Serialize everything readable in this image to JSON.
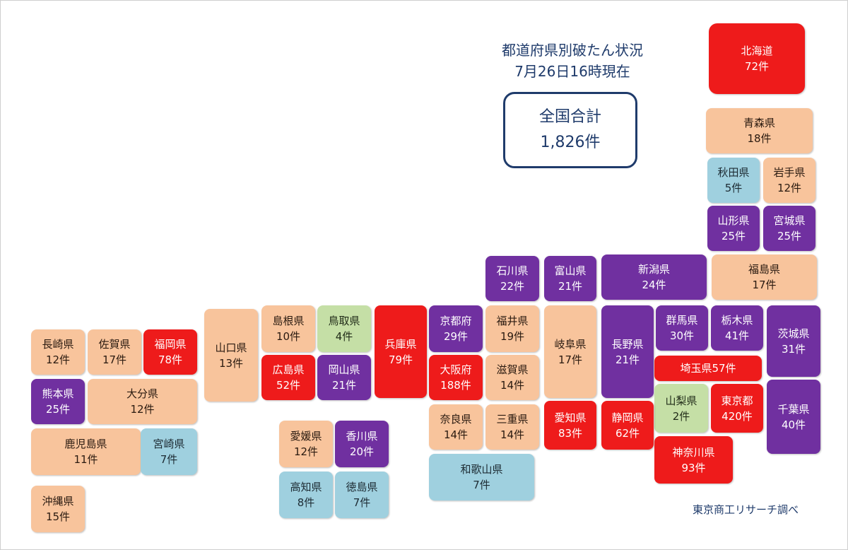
{
  "title": {
    "line1": "都道府県別破たん状況",
    "line2": "7月26日16時現在"
  },
  "total": {
    "label": "全国合計",
    "value": "1,826件"
  },
  "credit": "東京商工リサーチ調べ",
  "colors": {
    "red": "#ee1b1b",
    "purple": "#7030a0",
    "orange": "#f8c49c",
    "blue": "#9fd0df",
    "green": "#c5dfa6"
  },
  "prefectures": [
    {
      "id": "hokkaido",
      "name": "北海道",
      "count": "72件",
      "color": "red"
    },
    {
      "id": "aomori",
      "name": "青森県",
      "count": "18件",
      "color": "orange"
    },
    {
      "id": "akita",
      "name": "秋田県",
      "count": "5件",
      "color": "blue"
    },
    {
      "id": "iwate",
      "name": "岩手県",
      "count": "12件",
      "color": "orange"
    },
    {
      "id": "yamagata",
      "name": "山形県",
      "count": "25件",
      "color": "purple"
    },
    {
      "id": "miyagi",
      "name": "宮城県",
      "count": "25件",
      "color": "purple"
    },
    {
      "id": "ishikawa",
      "name": "石川県",
      "count": "22件",
      "color": "purple"
    },
    {
      "id": "toyama",
      "name": "富山県",
      "count": "21件",
      "color": "purple"
    },
    {
      "id": "niigata",
      "name": "新潟県",
      "count": "24件",
      "color": "purple"
    },
    {
      "id": "fukushima",
      "name": "福島県",
      "count": "17件",
      "color": "orange"
    },
    {
      "id": "nagasaki",
      "name": "長崎県",
      "count": "12件",
      "color": "orange"
    },
    {
      "id": "saga",
      "name": "佐賀県",
      "count": "17件",
      "color": "orange"
    },
    {
      "id": "fukuoka",
      "name": "福岡県",
      "count": "78件",
      "color": "red"
    },
    {
      "id": "yamaguchi",
      "name": "山口県",
      "count": "13件",
      "color": "orange"
    },
    {
      "id": "shimane",
      "name": "島根県",
      "count": "10件",
      "color": "orange"
    },
    {
      "id": "tottori",
      "name": "鳥取県",
      "count": "4件",
      "color": "green"
    },
    {
      "id": "hyogo",
      "name": "兵庫県",
      "count": "79件",
      "color": "red"
    },
    {
      "id": "kyoto",
      "name": "京都府",
      "count": "29件",
      "color": "purple"
    },
    {
      "id": "fukui",
      "name": "福井県",
      "count": "19件",
      "color": "orange"
    },
    {
      "id": "gifu",
      "name": "岐阜県",
      "count": "17件",
      "color": "orange"
    },
    {
      "id": "nagano",
      "name": "長野県",
      "count": "21件",
      "color": "purple"
    },
    {
      "id": "gunma",
      "name": "群馬県",
      "count": "30件",
      "color": "purple"
    },
    {
      "id": "tochigi",
      "name": "栃木県",
      "count": "41件",
      "color": "purple"
    },
    {
      "id": "ibaraki",
      "name": "茨城県",
      "count": "31件",
      "color": "purple"
    },
    {
      "id": "kumamoto",
      "name": "熊本県",
      "count": "25件",
      "color": "purple"
    },
    {
      "id": "oita",
      "name": "大分県",
      "count": "12件",
      "color": "orange"
    },
    {
      "id": "hiroshima",
      "name": "広島県",
      "count": "52件",
      "color": "red"
    },
    {
      "id": "okayama",
      "name": "岡山県",
      "count": "21件",
      "color": "purple"
    },
    {
      "id": "osaka",
      "name": "大阪府",
      "count": "188件",
      "color": "red"
    },
    {
      "id": "shiga",
      "name": "滋賀県",
      "count": "14件",
      "color": "orange"
    },
    {
      "id": "saitama",
      "name": "埼玉県",
      "count": "57件",
      "color": "red"
    },
    {
      "id": "yamanashi",
      "name": "山梨県",
      "count": "2件",
      "color": "green"
    },
    {
      "id": "tokyo",
      "name": "東京都",
      "count": "420件",
      "color": "red"
    },
    {
      "id": "chiba",
      "name": "千葉県",
      "count": "40件",
      "color": "purple"
    },
    {
      "id": "kagoshima",
      "name": "鹿児島県",
      "count": "11件",
      "color": "orange"
    },
    {
      "id": "miyazaki",
      "name": "宮崎県",
      "count": "7件",
      "color": "blue"
    },
    {
      "id": "ehime",
      "name": "愛媛県",
      "count": "12件",
      "color": "orange"
    },
    {
      "id": "kagawa",
      "name": "香川県",
      "count": "20件",
      "color": "purple"
    },
    {
      "id": "nara",
      "name": "奈良県",
      "count": "14件",
      "color": "orange"
    },
    {
      "id": "mie",
      "name": "三重県",
      "count": "14件",
      "color": "orange"
    },
    {
      "id": "aichi",
      "name": "愛知県",
      "count": "83件",
      "color": "red"
    },
    {
      "id": "shizuoka",
      "name": "静岡県",
      "count": "62件",
      "color": "red"
    },
    {
      "id": "kanagawa",
      "name": "神奈川県",
      "count": "93件",
      "color": "red"
    },
    {
      "id": "kochi",
      "name": "高知県",
      "count": "8件",
      "color": "blue"
    },
    {
      "id": "tokushima",
      "name": "徳島県",
      "count": "7件",
      "color": "blue"
    },
    {
      "id": "wakayama",
      "name": "和歌山県",
      "count": "7件",
      "color": "blue"
    },
    {
      "id": "okinawa",
      "name": "沖縄県",
      "count": "15件",
      "color": "orange"
    }
  ]
}
